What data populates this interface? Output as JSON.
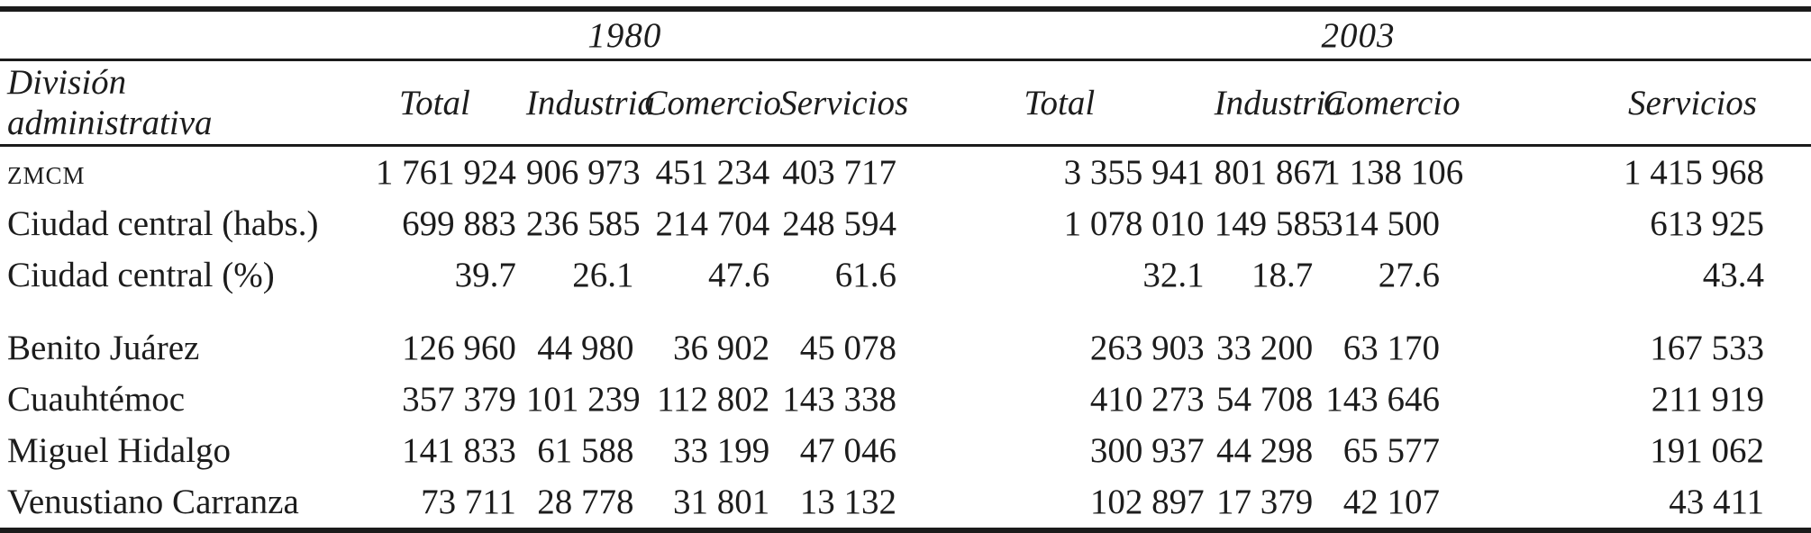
{
  "colors": {
    "text": "#1c1c1c",
    "rule": "#1b1b1b",
    "background": "#ffffff"
  },
  "table": {
    "years": {
      "y1980": "1980",
      "y2003": "2003"
    },
    "header": {
      "division_label": "División administrativa",
      "columns_1980": [
        "Total",
        "Industria",
        "Comercio",
        "Servicios"
      ],
      "columns_2003": [
        "Total",
        "Industria",
        "Comercio",
        "Servicios"
      ]
    },
    "rows": [
      {
        "label": "zmcm",
        "values": [
          "1 761 924",
          "906 973",
          "451 234",
          "403 717",
          "3 355 941",
          "801 867",
          "1 138 106",
          "1 415 968"
        ]
      },
      {
        "label": "Ciudad central (habs.)",
        "values": [
          "699 883",
          "236 585",
          "214 704",
          "248 594",
          "1 078 010",
          "149 585",
          "314 500",
          "613 925"
        ]
      },
      {
        "label": "Ciudad central (%)",
        "values": [
          "39.7",
          "26.1",
          "47.6",
          "61.6",
          "32.1",
          "18.7",
          "27.6",
          "43.4"
        ]
      },
      {
        "label": "Benito Juárez",
        "values": [
          "126 960",
          "44 980",
          "36 902",
          "45 078",
          "263 903",
          "33 200",
          "63 170",
          "167 533"
        ]
      },
      {
        "label": "Cuauhtémoc",
        "values": [
          "357 379",
          "101 239",
          "112 802",
          "143 338",
          "410 273",
          "54 708",
          "143 646",
          "211 919"
        ]
      },
      {
        "label": "Miguel Hidalgo",
        "values": [
          "141 833",
          "61 588",
          "33 199",
          "47 046",
          "300 937",
          "44 298",
          "65 577",
          "191 062"
        ]
      },
      {
        "label": "Venustiano Carranza",
        "values": [
          "73 711",
          "28 778",
          "31 801",
          "13 132",
          "102 897",
          "17 379",
          "42 107",
          "43 411"
        ]
      }
    ]
  },
  "chart_data": {
    "type": "table",
    "title": "",
    "row_header": "División administrativa",
    "column_groups": [
      "1980",
      "2003"
    ],
    "columns": [
      "1980 Total",
      "1980 Industria",
      "1980 Comercio",
      "1980 Servicios",
      "2003 Total",
      "2003 Industria",
      "2003 Comercio",
      "2003 Servicios"
    ],
    "rows": [
      [
        "ZMCM",
        1761924,
        906973,
        451234,
        403717,
        3355941,
        801867,
        1138106,
        1415968
      ],
      [
        "Ciudad central (habs.)",
        699883,
        236585,
        214704,
        248594,
        1078010,
        149585,
        314500,
        613925
      ],
      [
        "Ciudad central (%)",
        39.7,
        26.1,
        47.6,
        61.6,
        32.1,
        18.7,
        27.6,
        43.4
      ],
      [
        "Benito Juárez",
        126960,
        44980,
        36902,
        45078,
        263903,
        33200,
        63170,
        167533
      ],
      [
        "Cuauhtémoc",
        357379,
        101239,
        112802,
        143338,
        410273,
        54708,
        143646,
        211919
      ],
      [
        "Miguel Hidalgo",
        141833,
        61588,
        33199,
        47046,
        300937,
        44298,
        65577,
        191062
      ],
      [
        "Venustiano Carranza",
        73711,
        28778,
        31801,
        13132,
        102897,
        17379,
        42107,
        43411
      ]
    ]
  }
}
